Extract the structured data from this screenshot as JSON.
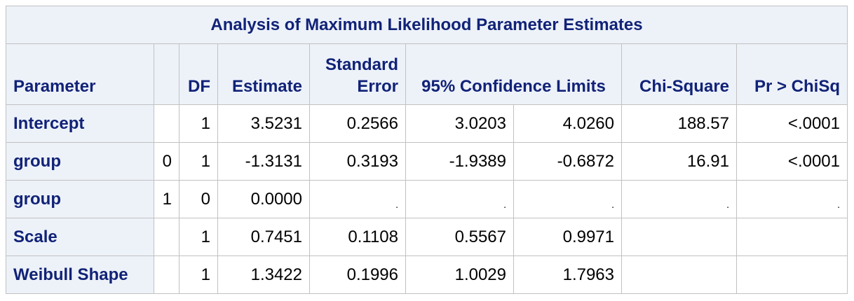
{
  "title": "Analysis of Maximum Likelihood Parameter Estimates",
  "headers": {
    "parameter": "Parameter",
    "level": "",
    "df": "DF",
    "estimate": "Estimate",
    "std_error_line1": "Standard",
    "std_error_line2": "Error",
    "conf_limits": "95% Confidence Limits",
    "chi_square": "Chi-Square",
    "pr_chisq": "Pr > ChiSq"
  },
  "rows": [
    {
      "parameter": "Intercept",
      "level": "",
      "df": "1",
      "estimate": "3.5231",
      "std_error": "0.2566",
      "lower": "3.0203",
      "upper": "4.0260",
      "chi_square": "188.57",
      "pr_chisq": "<.0001"
    },
    {
      "parameter": "group",
      "level": "0",
      "df": "1",
      "estimate": "-1.3131",
      "std_error": "0.3193",
      "lower": "-1.9389",
      "upper": "-0.6872",
      "chi_square": "16.91",
      "pr_chisq": "<.0001"
    },
    {
      "parameter": "group",
      "level": "1",
      "df": "0",
      "estimate": "0.0000",
      "std_error": ".",
      "lower": ".",
      "upper": ".",
      "chi_square": ".",
      "pr_chisq": "."
    },
    {
      "parameter": "Scale",
      "level": "",
      "df": "1",
      "estimate": "0.7451",
      "std_error": "0.1108",
      "lower": "0.5567",
      "upper": "0.9971",
      "chi_square": "",
      "pr_chisq": ""
    },
    {
      "parameter": "Weibull Shape",
      "level": "",
      "df": "1",
      "estimate": "1.3422",
      "std_error": "0.1996",
      "lower": "1.0029",
      "upper": "1.7963",
      "chi_square": "",
      "pr_chisq": ""
    }
  ],
  "colors": {
    "header_bg": "#edf2f9",
    "header_text": "#112277",
    "border": "#c1c1c1"
  }
}
